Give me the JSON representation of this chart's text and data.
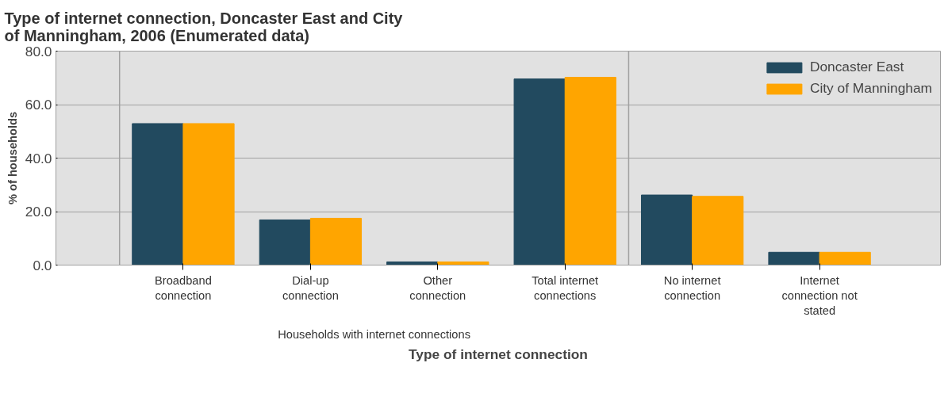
{
  "chart_data": {
    "type": "bar",
    "title": "Type of internet connection, Doncaster East and City of Manningham, 2006 (Enumerated data)",
    "xlabel": "Type of internet connection",
    "ylabel": "% of households",
    "categories": [
      "Broadband connection",
      "Dial-up connection",
      "Other connection",
      "Total internet connections",
      "No internet connection",
      "Internet connection not stated"
    ],
    "series": [
      {
        "name": "Doncaster East",
        "color": "#224a5f",
        "values": [
          52.9,
          16.9,
          1.2,
          69.6,
          26.2,
          4.8
        ]
      },
      {
        "name": "City of Manningham",
        "color": "#ffa500",
        "values": [
          52.9,
          17.5,
          1.2,
          70.2,
          25.7,
          4.8
        ]
      }
    ],
    "ylim": [
      0,
      80
    ],
    "yticks": [
      {
        "value": 0,
        "label": "0.0"
      },
      {
        "value": 20,
        "label": "20.0"
      },
      {
        "value": 40,
        "label": "40.0"
      },
      {
        "value": 60,
        "label": "60.0"
      },
      {
        "value": 80,
        "label": "80.0"
      }
    ],
    "grid": "y",
    "legend": "top right",
    "annotations": [
      "Households with internet connections"
    ]
  }
}
